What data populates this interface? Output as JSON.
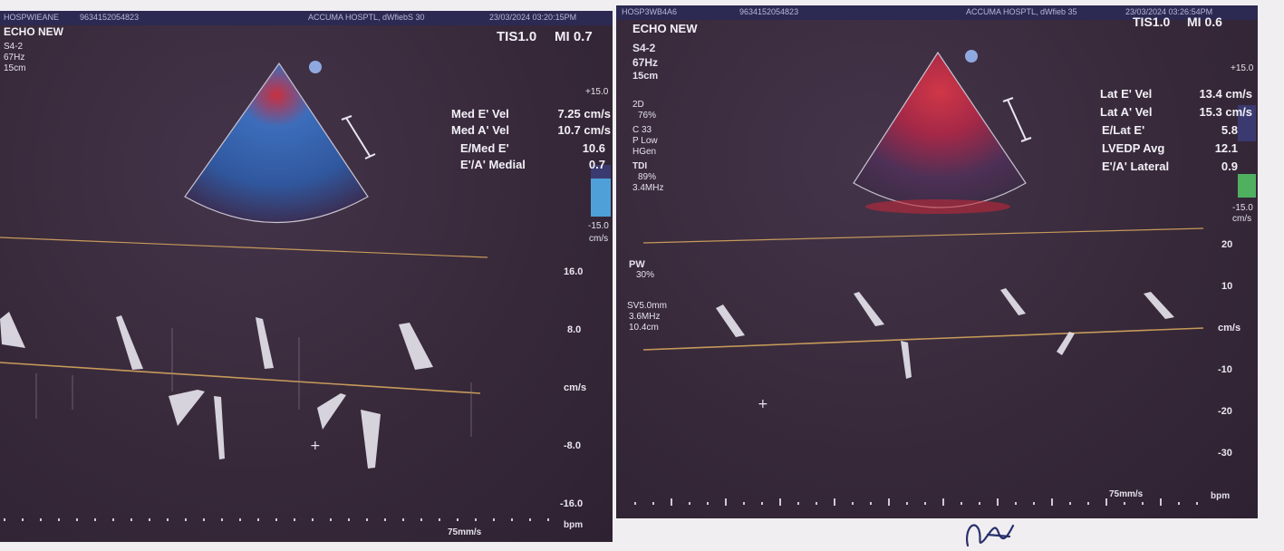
{
  "left_panel": {
    "header": {
      "id": "HOSPWIEANE",
      "patient": "9634152054823",
      "institution": "ACCUMA HOSPTL, dWfiebS 30",
      "datetime": "23/03/2024  03:20:15PM"
    },
    "protocol": "ECHO NEW",
    "probe": "S4-2",
    "frame_rate": "67Hz",
    "depth": "15cm",
    "tis": "TIS1.0",
    "mi": "MI 0.7",
    "velocity_scale_top": "+15.0",
    "velocity_scale_bottom": "-15.0",
    "scale_unit": "cm/s",
    "measurements": [
      {
        "label": "Med E' Vel",
        "value": "7.25 cm/s"
      },
      {
        "label": "Med A' Vel",
        "value": "10.7 cm/s"
      },
      {
        "label": "E/Med E'",
        "value": "10.6"
      },
      {
        "label": "E'/A' Medial",
        "value": "0.7"
      }
    ],
    "doppler_axis": [
      "16.0",
      "8.0",
      "cm/s",
      "-8.0",
      "-16.0"
    ],
    "sweep_speed": "75mm/s",
    "bpm_label": "bpm"
  },
  "right_panel": {
    "header": {
      "id": "HOSP3WB4A6",
      "patient": "9634152054823",
      "institution": "ACCUMA HOSPTL, dWfieb 35",
      "datetime": "23/03/2024  03:26:54PM"
    },
    "protocol": "ECHO NEW",
    "probe": "S4-2",
    "frame_rate": "67Hz",
    "depth": "15cm",
    "tis": "TIS1.0",
    "mi": "MI 0.6",
    "velocity_scale_top": "+15.0",
    "velocity_scale_bottom": "-15.0",
    "scale_unit": "cm/s",
    "settings": [
      "2D",
      "76%",
      "C 33",
      "P Low",
      "HGen",
      "TDI",
      "89%",
      "3.4MHz"
    ],
    "pw_settings": [
      "PW",
      "30%",
      "SV5.0mm",
      "3.6MHz",
      "10.4cm"
    ],
    "measurements": [
      {
        "label": "Lat E' Vel",
        "value": "13.4 cm/s"
      },
      {
        "label": "Lat A' Vel",
        "value": "15.3 cm/s"
      },
      {
        "label": "E/Lat E'",
        "value": "5.8"
      },
      {
        "label": "LVEDP Avg",
        "value": "12.1"
      },
      {
        "label": "E'/A' Lateral",
        "value": "0.9"
      }
    ],
    "doppler_axis": [
      "20",
      "10",
      "cm/s",
      "-10",
      "-20",
      "-30"
    ],
    "sweep_speed": "75mm/s",
    "bpm_label": "bpm"
  },
  "colors": {
    "screen_bg": "#3a2c3c",
    "header_bar": "#2c2a52",
    "baseline": "#c79a5a",
    "doppler_flow_blue": "#3c74c8",
    "doppler_flow_red": "#d83040"
  }
}
